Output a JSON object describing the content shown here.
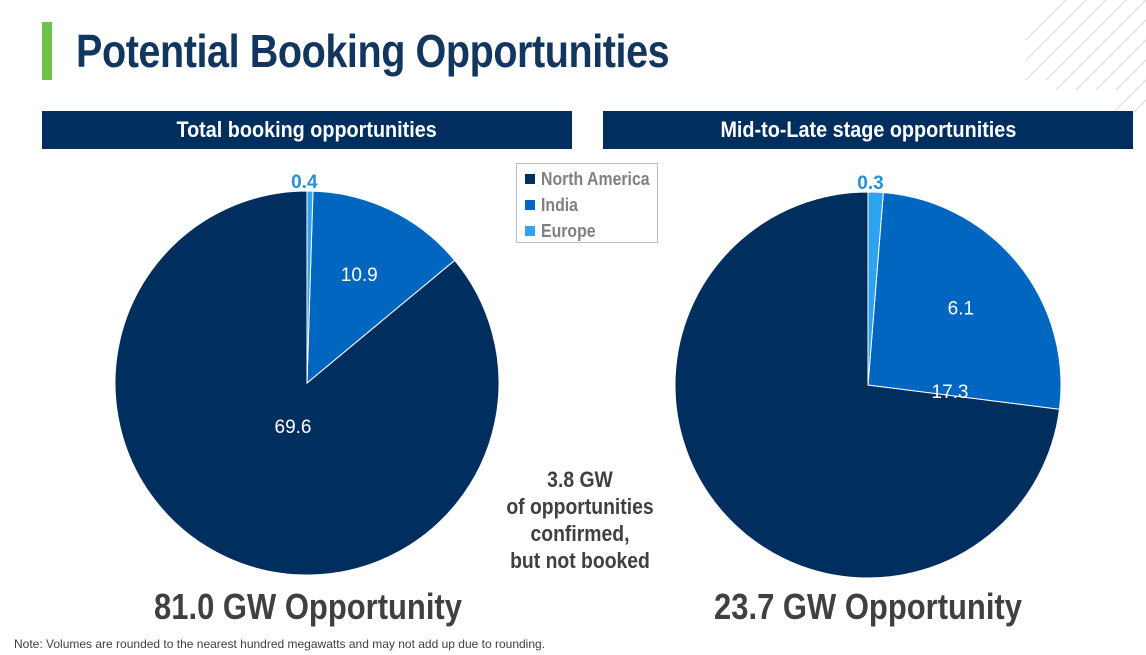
{
  "title": "Potential Booking Opportunities",
  "colors": {
    "north_america": "#002f5f",
    "india": "#0066c0",
    "europe": "#2ea3f2",
    "accent": "#6cc24a",
    "header_bg": "#002f5f"
  },
  "legend": [
    {
      "label": "North America",
      "color": "#002f5f"
    },
    {
      "label": "India",
      "color": "#0066c0"
    },
    {
      "label": "Europe",
      "color": "#2ea3f2"
    }
  ],
  "chart_data": [
    {
      "type": "pie",
      "title": "Total booking opportunities",
      "categories": [
        "North America",
        "India",
        "Europe"
      ],
      "values": [
        69.6,
        10.9,
        0.4
      ],
      "labels": [
        "69.6",
        "10.9",
        "0.4"
      ],
      "total_label": "81.0 GW Opportunity",
      "legend_position": "top-right"
    },
    {
      "type": "pie",
      "title": "Mid-to-Late stage opportunities",
      "categories": [
        "North America",
        "India",
        "Europe"
      ],
      "values": [
        17.3,
        6.1,
        0.3
      ],
      "labels": [
        "17.3",
        "6.1",
        "0.3"
      ],
      "total_label": "23.7 GW Opportunity"
    }
  ],
  "center_note": [
    "3.8 GW",
    "of opportunities",
    "confirmed,",
    "but not booked"
  ],
  "footnote": "Note: Volumes are rounded to the nearest hundred megawatts and may not add up due to rounding."
}
